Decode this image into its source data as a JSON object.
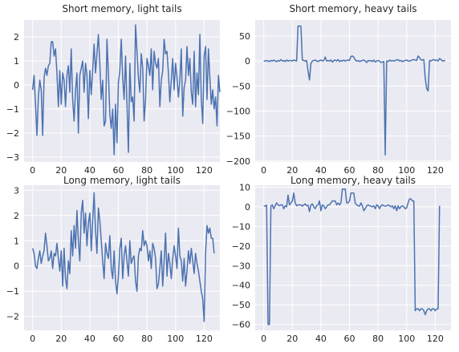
{
  "figure": {
    "background": "#ffffff",
    "axes_background": "#eaeaf2",
    "grid_color": "#ffffff",
    "line_color": "#4c72b0"
  },
  "chart_data": [
    {
      "type": "line",
      "title": "Short memory, light tails",
      "xlabel": "",
      "ylabel": "",
      "xlim": [
        -6,
        131
      ],
      "ylim": [
        -3.2,
        2.7
      ],
      "xticks": [
        0,
        20,
        40,
        60,
        80,
        100,
        120
      ],
      "yticks": [
        -3,
        -2,
        -1,
        0,
        1,
        2
      ],
      "grid": true,
      "series": [
        {
          "x_start": 0,
          "values": [
            -0.2,
            0.4,
            -0.8,
            -2.1,
            -0.5,
            0.2,
            -0.2,
            -2.1,
            0.3,
            0.7,
            0.4,
            0.8,
            0.9,
            1.8,
            1.8,
            1.2,
            1.5,
            0.5,
            -0.9,
            0.6,
            -0.8,
            0.5,
            0.2,
            -0.9,
            0.4,
            0.8,
            -0.3,
            1.5,
            -0.6,
            -1.5,
            -0.2,
            0.5,
            -2.0,
            0.4,
            0.7,
            1.0,
            -0.3,
            0.9,
            0.4,
            -1.4,
            0.6,
            -0.4,
            0.6,
            1.7,
            0.5,
            1.3,
            2.1,
            0.9,
            -0.6,
            0.2,
            -1.7,
            -1.5,
            1.9,
            0.5,
            -1.2,
            -1.8,
            -1.0,
            -2.9,
            -0.8,
            -2.4,
            0.1,
            0.6,
            1.9,
            0.3,
            -0.6,
            1.2,
            -0.8,
            -2.8,
            0.9,
            -0.7,
            -0.5,
            -1.5,
            2.5,
            1.4,
            0.3,
            -0.3,
            1.3,
            0.7,
            -1.5,
            -0.6,
            1.1,
            0.8,
            0.4,
            1.5,
            -0.2,
            1.4,
            0.9,
            0.7,
            1.1,
            -0.9,
            0.2,
            0.6,
            1.9,
            1.3,
            1.4,
            0.5,
            -0.7,
            0.2,
            1.1,
            -0.2,
            0.9,
            0.3,
            -0.5,
            0.2,
            1.5,
            -1.3,
            -0.1,
            0.2,
            1.6,
            0.4,
            1.1,
            -0.3,
            -0.8,
            1.4,
            -0.9,
            0.5,
            -0.4,
            2.1,
            -0.6,
            -1.6,
            1.2,
            1.6,
            -0.6,
            1.5,
            0.3,
            -0.8,
            -0.2,
            -1.0,
            -0.5,
            -1.7,
            0.4,
            -0.3
          ]
        }
      ]
    },
    {
      "type": "line",
      "title": "Short memory, heavy tails",
      "xlabel": "",
      "ylabel": "",
      "xlim": [
        -6,
        131
      ],
      "ylim": [
        -202,
        82
      ],
      "xticks": [
        0,
        20,
        40,
        60,
        80,
        100,
        120
      ],
      "yticks": [
        -200,
        -150,
        -100,
        -50,
        0,
        50
      ],
      "grid": true,
      "series": [
        {
          "x_start": 0,
          "values": [
            0,
            0,
            1,
            0,
            -1,
            1,
            0,
            2,
            0,
            -1,
            1,
            0,
            3,
            0,
            1,
            -1,
            2,
            0,
            1,
            1,
            0,
            2,
            1,
            0,
            70,
            70,
            70,
            2,
            1,
            0,
            1,
            -20,
            -38,
            -5,
            0,
            1,
            2,
            0,
            -1,
            1,
            2,
            0,
            1,
            8,
            0,
            1,
            0,
            2,
            -2,
            1,
            2,
            0,
            3,
            -1,
            1,
            0,
            2,
            0,
            1,
            2,
            1,
            9,
            10,
            8,
            2,
            0,
            1,
            -1,
            0,
            1,
            2,
            0,
            -3,
            1,
            0,
            1,
            -1,
            2,
            -2,
            0,
            1,
            0,
            -3,
            -2,
            -1,
            -188,
            0,
            -1,
            2,
            0,
            1,
            0,
            1,
            2,
            3,
            0,
            1,
            -1,
            0,
            1,
            2,
            0,
            0,
            1,
            2,
            3,
            2,
            1,
            10,
            7,
            2,
            2,
            3,
            -35,
            -55,
            -60,
            1,
            0,
            2,
            3,
            1,
            2,
            0,
            5,
            3,
            0,
            1,
            0
          ]
        }
      ]
    },
    {
      "type": "line",
      "title": "Long memory, light tails",
      "xlabel": "",
      "ylabel": "",
      "xlim": [
        -6,
        131
      ],
      "ylim": [
        -2.55,
        3.2
      ],
      "xticks": [
        0,
        20,
        40,
        60,
        80,
        100,
        120
      ],
      "yticks": [
        -2,
        -1,
        0,
        1,
        2,
        3
      ],
      "grid": true,
      "series": [
        {
          "x_start": 0,
          "values": [
            0.7,
            0.5,
            0.0,
            -0.1,
            0.3,
            0.6,
            0.1,
            0.4,
            0.6,
            1.3,
            0.8,
            0.2,
            0.3,
            0.6,
            -0.1,
            0.5,
            0.4,
            0.9,
            0.3,
            -0.2,
            0.6,
            -0.8,
            0.7,
            -0.5,
            -0.9,
            0.2,
            -0.3,
            1.4,
            0.4,
            1.6,
            0.7,
            2.2,
            1.0,
            0.2,
            2.1,
            2.6,
            1.3,
            2.1,
            0.8,
            1.7,
            2.1,
            0.6,
            1.8,
            2.9,
            1.4,
            0.5,
            2.3,
            1.8,
            1.0,
            0.2,
            -0.5,
            0.9,
            0.5,
            0.3,
            1.2,
            -0.1,
            -0.5,
            0.6,
            -0.6,
            -1.1,
            -0.4,
            0.7,
            1.1,
            -0.5,
            0.4,
            0.8,
            0.2,
            -0.4,
            1.0,
            0.1,
            0.3,
            0.4,
            -0.6,
            -1.0,
            0.4,
            0.7,
            0.6,
            1.4,
            0.8,
            1.0,
            0.8,
            0.2,
            0.6,
            -0.1,
            0.9,
            0.7,
            0.3,
            -0.9,
            -0.7,
            -0.1,
            0.6,
            -0.8,
            0.2,
            1.3,
            -0.4,
            0.5,
            0.1,
            -0.5,
            0.3,
            0.8,
            0.4,
            -0.1,
            1.5,
            0.4,
            0.2,
            -0.6,
            0.3,
            -0.8,
            -0.2,
            0.6,
            0.1,
            0.7,
            0.2,
            -0.3,
            0.5,
            0.1,
            -0.2,
            -0.6,
            -1.0,
            -1.3,
            -2.2,
            0.5,
            1.6,
            1.3,
            1.5,
            1.1,
            1.1,
            0.5
          ]
        }
      ]
    },
    {
      "type": "line",
      "title": "Long memory, heavy tails",
      "xlabel": "",
      "ylabel": "",
      "xlim": [
        -6,
        131
      ],
      "ylim": [
        -63,
        11
      ],
      "xticks": [
        0,
        20,
        40,
        60,
        80,
        100,
        120
      ],
      "yticks": [
        -60,
        -50,
        -40,
        -30,
        -20,
        -10,
        0,
        10
      ],
      "grid": true,
      "series": [
        {
          "x_start": 0,
          "values": [
            0.5,
            0.3,
            0.8,
            -60,
            -60,
            0.3,
            1,
            -1,
            0.5,
            2,
            1,
            0.5,
            1,
            1,
            -1,
            0.5,
            0,
            6,
            1,
            2,
            3,
            7,
            2,
            0.5,
            1,
            1,
            1,
            0.3,
            1,
            1.5,
            0.5,
            0.8,
            -2.5,
            1,
            1.5,
            0,
            -1,
            0.5,
            1,
            3,
            -2,
            1,
            0.5,
            -1,
            0,
            1,
            1,
            2,
            3,
            3,
            3,
            1,
            2,
            1,
            2,
            9,
            9,
            9,
            2,
            2,
            3,
            7,
            7,
            7,
            2,
            1,
            0.5,
            0.3,
            2,
            0.5,
            -2,
            -1,
            0.5,
            1,
            0.5,
            0.3,
            0,
            0.5,
            -1,
            1,
            0.5,
            -1,
            0.5,
            1,
            0.5,
            0.3,
            0.5,
            1,
            0.5,
            0,
            0.5,
            -1,
            0.5,
            -2,
            0.5,
            -1,
            0,
            0.5,
            0,
            -1,
            -0.5,
            2,
            4,
            4,
            3,
            3,
            -53,
            -52,
            -52,
            -53,
            -52,
            -52,
            -53,
            -55,
            -53,
            -52,
            -52,
            -53,
            -52,
            -52,
            -53,
            -52,
            -52,
            0.5
          ]
        }
      ]
    }
  ]
}
